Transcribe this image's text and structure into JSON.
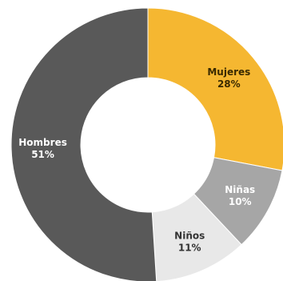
{
  "chart_data": {
    "type": "pie",
    "donut": true,
    "categories": [
      "Mujeres",
      "Niñas",
      "Niños",
      "Hombres"
    ],
    "values": [
      28,
      10,
      11,
      51
    ],
    "labels": [
      "28%",
      "10%",
      "11%",
      "51%"
    ],
    "colors": [
      "#F5B731",
      "#A6A6A6",
      "#E8E8E8",
      "#595959"
    ],
    "label_colors": [
      "#3a2a00",
      "#ffffff",
      "#333333",
      "#ffffff"
    ],
    "start_angle_deg": 0,
    "direction": "clockwise",
    "legend": "none",
    "title": ""
  }
}
